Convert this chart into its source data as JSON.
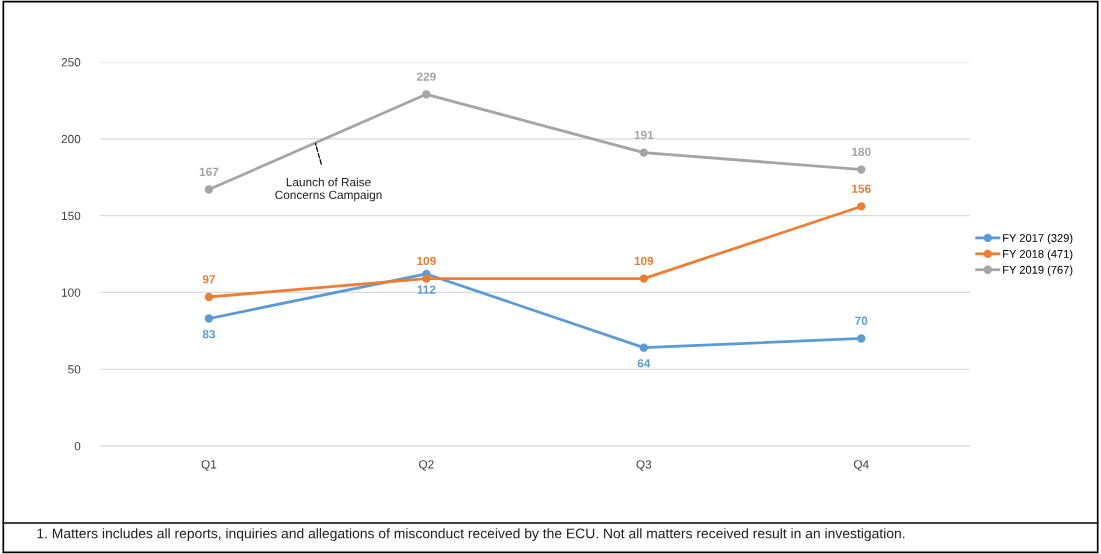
{
  "chart_data": {
    "type": "line",
    "categories": [
      "Q1",
      "Q2",
      "Q3",
      "Q4"
    ],
    "series": [
      {
        "name": "FY 2017 (329)",
        "color": "#5b9bd5",
        "values": [
          83,
          112,
          64,
          70
        ]
      },
      {
        "name": "FY 2018 (471)",
        "color": "#ed7d31",
        "values": [
          97,
          109,
          109,
          156
        ]
      },
      {
        "name": "FY 2019 (767)",
        "color": "#a5a5a5",
        "values": [
          167,
          229,
          191,
          180
        ]
      }
    ],
    "ylim": [
      0,
      250
    ],
    "yticks": [
      0,
      50,
      100,
      150,
      200,
      250
    ],
    "grid": "y",
    "legend": "right",
    "marker": "circle",
    "line_style": "solid",
    "data_labels": true,
    "annotations": [
      {
        "text": "Launch of Raise\nConcerns Campaign",
        "y": 197
      },
      "1. Matters includes all reports, inquiries and allegations of misconduct received by the ECU. Not all matters received result in an investigation."
    ]
  }
}
